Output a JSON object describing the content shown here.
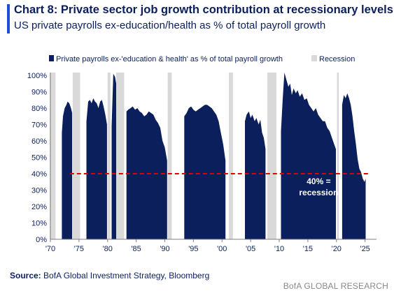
{
  "header": {
    "title": "Chart 8: Private sector job growth contribution at recessionary levels",
    "subtitle": "US private payrolls ex-education/health as % of total payroll growth"
  },
  "footer": {
    "source_label": "Source:",
    "source_text": " BofA Global Investment Strategy, Bloomberg",
    "brand": "BofA GLOBAL RESEARCH"
  },
  "chart_data": {
    "type": "area",
    "title": "Chart 8: Private sector job growth contribution at recessionary levels",
    "subtitle": "US private payrolls ex-education/health as % of total payroll growth",
    "legend": {
      "placement": "top",
      "entries": [
        "Private payrolls ex-'education & health' as % of total payroll growth",
        "Recession"
      ]
    },
    "colors": {
      "series": "#0b1f5c",
      "recession": "#d9d9d9",
      "threshold": "#e00000",
      "annotation_text": "#ffffff"
    },
    "ylim": [
      0,
      100
    ],
    "xlim": [
      1970,
      2027
    ],
    "yticks": [
      "0%",
      "10%",
      "20%",
      "30%",
      "40%",
      "50%",
      "60%",
      "70%",
      "80%",
      "90%",
      "100%"
    ],
    "xticks": [
      {
        "x": 1970,
        "label": "'70"
      },
      {
        "x": 1975,
        "label": "'75"
      },
      {
        "x": 1980,
        "label": "'80"
      },
      {
        "x": 1985,
        "label": "'85"
      },
      {
        "x": 1990,
        "label": "'90"
      },
      {
        "x": 1995,
        "label": "'95"
      },
      {
        "x": 2000,
        "label": "'00"
      },
      {
        "x": 2005,
        "label": "'05"
      },
      {
        "x": 2010,
        "label": "'10"
      },
      {
        "x": 2015,
        "label": "'15"
      },
      {
        "x": 2020,
        "label": "'20"
      },
      {
        "x": 2025,
        "label": "'25"
      }
    ],
    "grid": false,
    "recessions": [
      [
        1969.9,
        1970.9
      ],
      [
        1973.9,
        1975.2
      ],
      [
        1980.0,
        1980.5
      ],
      [
        1981.5,
        1982.9
      ],
      [
        1990.5,
        1991.2
      ],
      [
        2001.2,
        2001.9
      ],
      [
        2007.9,
        2009.5
      ],
      [
        2020.1,
        2020.4
      ]
    ],
    "threshold": {
      "y": 40,
      "label_line1": "40% =",
      "label_line2": "recession"
    },
    "series": [
      {
        "name": "Private payrolls ex-'education & health' as % of total payroll growth",
        "segments": [
          [
            [
              1972.0,
              65
            ],
            [
              1972.2,
              75
            ],
            [
              1972.5,
              80
            ],
            [
              1972.8,
              82
            ],
            [
              1973.0,
              84
            ],
            [
              1973.3,
              83
            ],
            [
              1973.6,
              80
            ],
            [
              1973.8,
              77
            ]
          ],
          [
            [
              1976.3,
              72
            ],
            [
              1976.6,
              84
            ],
            [
              1976.9,
              85
            ],
            [
              1977.2,
              83
            ],
            [
              1977.5,
              86
            ],
            [
              1977.8,
              84
            ],
            [
              1978.1,
              83
            ],
            [
              1978.4,
              80
            ],
            [
              1978.7,
              84
            ],
            [
              1979.0,
              85
            ],
            [
              1979.3,
              81
            ],
            [
              1979.6,
              76
            ],
            [
              1979.9,
              70
            ]
          ],
          [
            [
              1980.7,
              69
            ],
            [
              1981.0,
              101
            ],
            [
              1981.3,
              99
            ],
            [
              1981.5,
              95
            ]
          ],
          [
            [
              1983.3,
              78
            ],
            [
              1983.6,
              79
            ],
            [
              1984.0,
              80
            ],
            [
              1984.4,
              81
            ],
            [
              1984.8,
              79
            ],
            [
              1985.2,
              80
            ],
            [
              1985.6,
              78
            ],
            [
              1986.0,
              77
            ],
            [
              1986.4,
              75
            ],
            [
              1986.8,
              76
            ],
            [
              1987.2,
              78
            ],
            [
              1987.6,
              77
            ],
            [
              1988.0,
              76
            ],
            [
              1988.4,
              73
            ],
            [
              1988.8,
              71
            ],
            [
              1989.2,
              68
            ],
            [
              1989.6,
              60
            ],
            [
              1990.0,
              56
            ],
            [
              1990.4,
              48
            ]
          ],
          [
            [
              1993.4,
              75
            ],
            [
              1993.8,
              77
            ],
            [
              1994.2,
              80
            ],
            [
              1994.6,
              81
            ],
            [
              1995.0,
              79
            ],
            [
              1995.4,
              78
            ],
            [
              1995.8,
              79
            ],
            [
              1996.2,
              80
            ],
            [
              1996.6,
              81
            ],
            [
              1997.0,
              82
            ],
            [
              1997.4,
              82
            ],
            [
              1997.8,
              81
            ],
            [
              1998.2,
              80
            ],
            [
              1998.6,
              78
            ],
            [
              1999.0,
              76
            ],
            [
              1999.4,
              72
            ],
            [
              1999.8,
              65
            ],
            [
              2000.2,
              58
            ],
            [
              2000.6,
              48
            ]
          ],
          [
            [
              2004.0,
              72
            ],
            [
              2004.3,
              76
            ],
            [
              2004.7,
              78
            ],
            [
              2005.0,
              74
            ],
            [
              2005.3,
              76
            ],
            [
              2005.7,
              72
            ],
            [
              2006.0,
              74
            ],
            [
              2006.4,
              70
            ],
            [
              2006.7,
              73
            ],
            [
              2007.0,
              65
            ],
            [
              2007.3,
              62
            ],
            [
              2007.6,
              55
            ]
          ],
          [
            [
              2010.3,
              66
            ],
            [
              2010.6,
              85
            ],
            [
              2010.9,
              102
            ],
            [
              2011.2,
              98
            ],
            [
              2011.6,
              93
            ],
            [
              2011.9,
              95
            ],
            [
              2012.2,
              88
            ],
            [
              2012.5,
              92
            ],
            [
              2012.9,
              89
            ],
            [
              2013.2,
              91
            ],
            [
              2013.6,
              87
            ],
            [
              2014.0,
              89
            ],
            [
              2014.4,
              85
            ],
            [
              2014.8,
              86
            ],
            [
              2015.2,
              82
            ],
            [
              2015.6,
              80
            ],
            [
              2016.0,
              78
            ],
            [
              2016.4,
              80
            ],
            [
              2016.8,
              76
            ],
            [
              2017.2,
              74
            ],
            [
              2017.6,
              72
            ],
            [
              2018.0,
              72
            ],
            [
              2018.4,
              68
            ],
            [
              2018.8,
              66
            ],
            [
              2019.2,
              62
            ],
            [
              2019.6,
              58
            ],
            [
              2019.9,
              55
            ]
          ],
          [
            [
              2021.0,
              82
            ],
            [
              2021.3,
              88
            ],
            [
              2021.6,
              86
            ],
            [
              2021.9,
              89
            ],
            [
              2022.2,
              86
            ],
            [
              2022.5,
              82
            ],
            [
              2022.8,
              75
            ],
            [
              2023.1,
              66
            ],
            [
              2023.4,
              58
            ],
            [
              2023.7,
              49
            ],
            [
              2024.0,
              43
            ],
            [
              2024.3,
              41
            ],
            [
              2024.6,
              37
            ],
            [
              2024.9,
              35
            ],
            [
              2025.1,
              37
            ]
          ]
        ]
      }
    ]
  }
}
